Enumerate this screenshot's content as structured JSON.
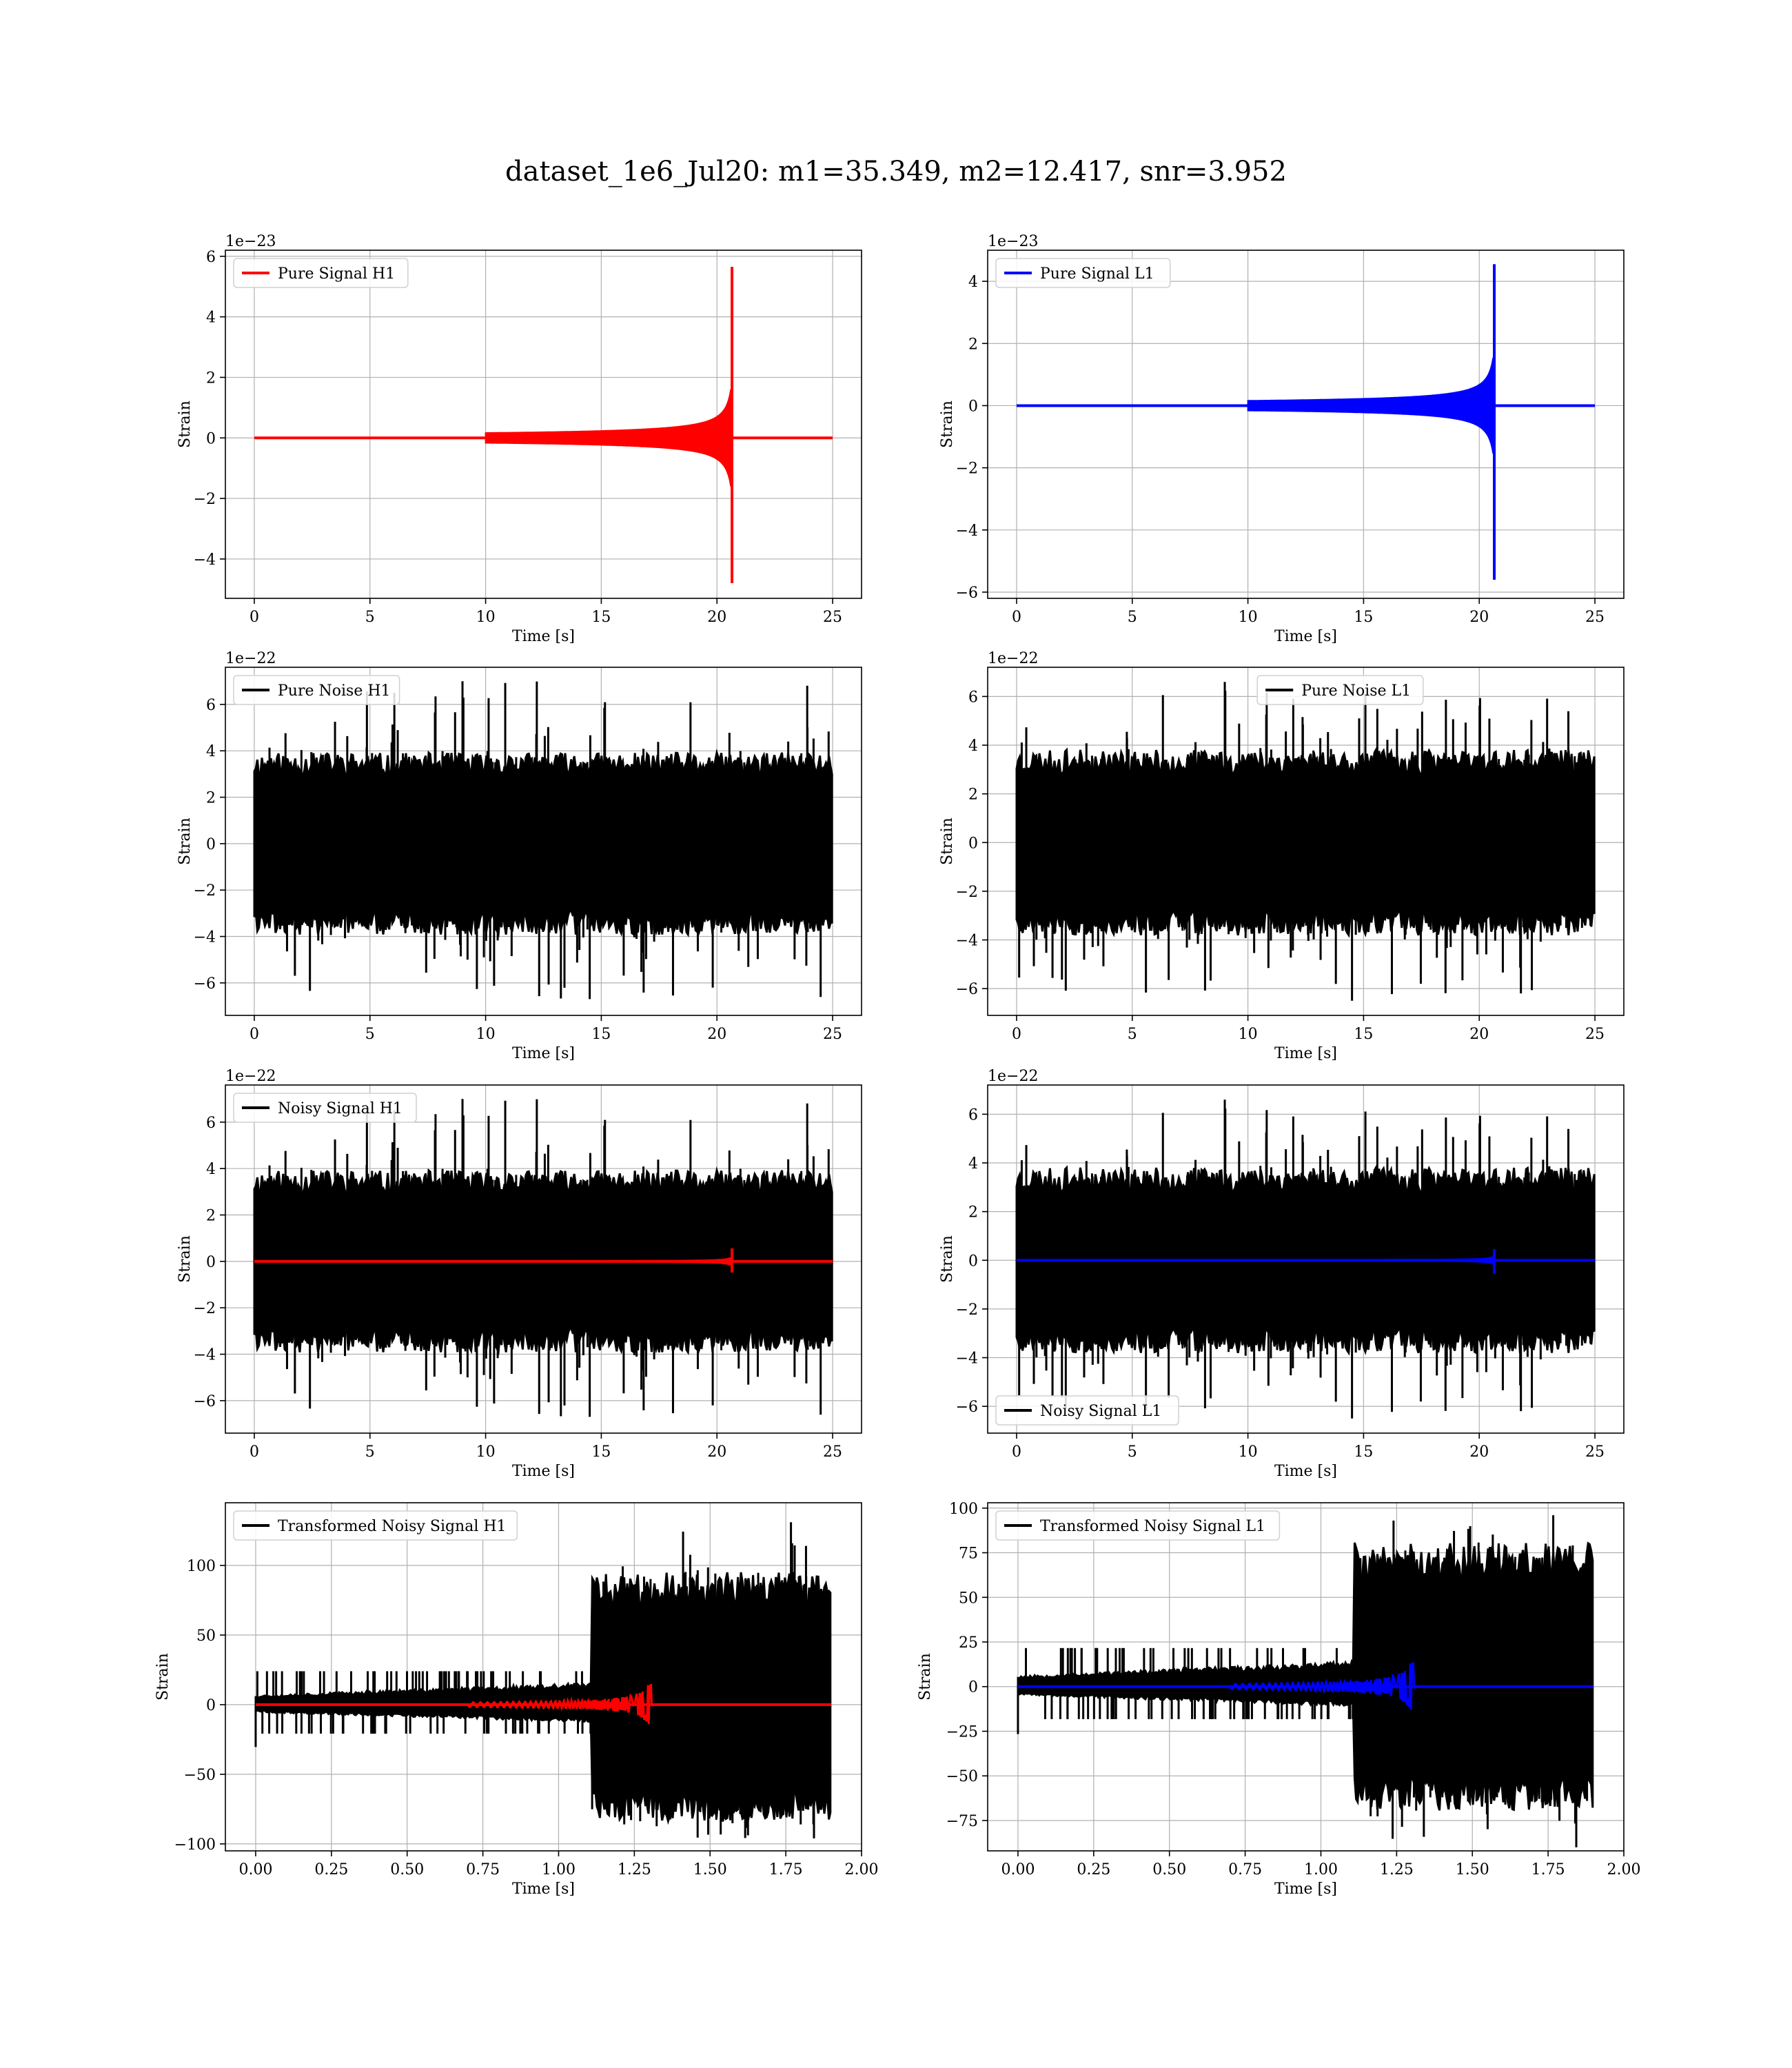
{
  "figure": {
    "title": "dataset_1e6_Jul20: m1=35.349, m2=12.417, snr=3.952"
  },
  "colors": {
    "h1_signal": "#ff0000",
    "l1_signal": "#0000ff",
    "noise": "#000000",
    "grid": "#b0b0b0"
  },
  "chart_data": [
    {
      "id": "pure-signal-h1",
      "type": "line",
      "xlabel": "Time [s]",
      "ylabel": "Strain",
      "offset_label": "1e−23",
      "xlim": [
        -1.25,
        26.25
      ],
      "ylim": [
        -5.3,
        6.2
      ],
      "xticks": [
        0,
        5,
        10,
        15,
        20,
        25
      ],
      "yticks": [
        -4,
        -2,
        0,
        2,
        4,
        6
      ],
      "legend": {
        "position": "top-left"
      },
      "series": [
        {
          "name": "Pure Signal H1",
          "color": "#ff0000",
          "kind": "chirp",
          "t0": 0,
          "tmerge": 20.65,
          "tend": 25,
          "pos_peak": 5.65,
          "neg_peak": -4.8,
          "envelope_scale": 1.3
        }
      ]
    },
    {
      "id": "pure-signal-l1",
      "type": "line",
      "xlabel": "Time [s]",
      "ylabel": "Strain",
      "offset_label": "1e−23",
      "xlim": [
        -1.25,
        26.25
      ],
      "ylim": [
        -6.2,
        5.0
      ],
      "xticks": [
        0,
        5,
        10,
        15,
        20,
        25
      ],
      "yticks": [
        -6,
        -4,
        -2,
        0,
        2,
        4
      ],
      "legend": {
        "position": "top-left"
      },
      "series": [
        {
          "name": "Pure Signal L1",
          "color": "#0000ff",
          "kind": "chirp",
          "t0": 0,
          "tmerge": 20.65,
          "tend": 25,
          "pos_peak": 4.55,
          "neg_peak": -5.6,
          "envelope_scale": 1.25
        }
      ]
    },
    {
      "id": "pure-noise-h1",
      "type": "line",
      "xlabel": "Time [s]",
      "ylabel": "Strain",
      "offset_label": "1e−22",
      "xlim": [
        -1.25,
        26.25
      ],
      "ylim": [
        -7.4,
        7.6
      ],
      "xticks": [
        0,
        5,
        10,
        15,
        20,
        25
      ],
      "yticks": [
        -6,
        -4,
        -2,
        0,
        2,
        4,
        6
      ],
      "legend": {
        "position": "top-left"
      },
      "series": [
        {
          "name": "Pure Noise H1",
          "color": "#000000",
          "kind": "noise",
          "t0": 0,
          "tend": 25,
          "band_lo": -3.5,
          "band_hi": 3.5,
          "spike_max": 7.0,
          "spike_min": -6.7,
          "seed": 11
        }
      ]
    },
    {
      "id": "pure-noise-l1",
      "type": "line",
      "xlabel": "Time [s]",
      "ylabel": "Strain",
      "offset_label": "1e−22",
      "xlim": [
        -1.25,
        26.25
      ],
      "ylim": [
        -7.1,
        7.2
      ],
      "xticks": [
        0,
        5,
        10,
        15,
        20,
        25
      ],
      "yticks": [
        -6,
        -4,
        -2,
        0,
        2,
        4,
        6
      ],
      "legend": {
        "position": "top-center"
      },
      "series": [
        {
          "name": "Pure Noise L1",
          "color": "#000000",
          "kind": "noise",
          "t0": 0,
          "tend": 25,
          "band_lo": -3.4,
          "band_hi": 3.4,
          "spike_max": 6.6,
          "spike_min": -6.5,
          "seed": 23
        }
      ]
    },
    {
      "id": "noisy-signal-h1",
      "type": "line",
      "xlabel": "Time [s]",
      "ylabel": "Strain",
      "offset_label": "1e−22",
      "xlim": [
        -1.25,
        26.25
      ],
      "ylim": [
        -7.4,
        7.6
      ],
      "xticks": [
        0,
        5,
        10,
        15,
        20,
        25
      ],
      "yticks": [
        -6,
        -4,
        -2,
        0,
        2,
        4,
        6
      ],
      "legend": {
        "position": "top-left"
      },
      "series": [
        {
          "name": "Noisy Signal H1",
          "color": "#000000",
          "kind": "noise",
          "t0": 0,
          "tend": 25,
          "band_lo": -3.5,
          "band_hi": 3.5,
          "spike_max": 7.0,
          "spike_min": -6.7,
          "seed": 11
        },
        {
          "name": "",
          "color": "#ff0000",
          "kind": "chirp",
          "t0": 0,
          "tmerge": 20.65,
          "tend": 25,
          "pos_peak": 0.56,
          "neg_peak": -0.48,
          "envelope_scale": 0.13
        }
      ]
    },
    {
      "id": "noisy-signal-l1",
      "type": "line",
      "xlabel": "Time [s]",
      "ylabel": "Strain",
      "offset_label": "1e−22",
      "xlim": [
        -1.25,
        26.25
      ],
      "ylim": [
        -7.1,
        7.2
      ],
      "xticks": [
        0,
        5,
        10,
        15,
        20,
        25
      ],
      "yticks": [
        -6,
        -4,
        -2,
        0,
        2,
        4,
        6
      ],
      "legend": {
        "position": "bottom-left"
      },
      "series": [
        {
          "name": "Noisy Signal L1",
          "color": "#000000",
          "kind": "noise",
          "t0": 0,
          "tend": 25,
          "band_lo": -3.4,
          "band_hi": 3.4,
          "spike_max": 6.6,
          "spike_min": -6.5,
          "seed": 23
        },
        {
          "name": "",
          "color": "#0000ff",
          "kind": "chirp",
          "t0": 0,
          "tmerge": 20.65,
          "tend": 25,
          "pos_peak": 0.46,
          "neg_peak": -0.56,
          "envelope_scale": 0.12
        }
      ]
    },
    {
      "id": "transformed-noisy-signal-h1",
      "type": "line",
      "xlabel": "Time [s]",
      "ylabel": "Strain",
      "offset_label": "",
      "xlim": [
        -0.1,
        2.0
      ],
      "ylim": [
        -105,
        145
      ],
      "xticks": [
        0.0,
        0.25,
        0.5,
        0.75,
        1.0,
        1.25,
        1.5,
        1.75,
        2.0
      ],
      "xtick_labels": [
        "0.00",
        "0.25",
        "0.50",
        "0.75",
        "1.00",
        "1.25",
        "1.50",
        "1.75",
        "2.00"
      ],
      "yticks": [
        -100,
        -50,
        0,
        50,
        100
      ],
      "legend": {
        "position": "top-left"
      },
      "series": [
        {
          "name": "Transformed Noisy Signal H1",
          "color": "#000000",
          "kind": "transformed",
          "t0": 0,
          "tstep": 1.11,
          "tend": 1.9,
          "early_lo": -8,
          "early_hi": 10,
          "late_lo": -75,
          "late_hi": 85,
          "spike_max": 131,
          "spike_min": -96,
          "seed": 37
        },
        {
          "name": "",
          "color": "#ff0000",
          "kind": "burst",
          "t0": 0,
          "tpeak": 1.31,
          "tend": 1.9,
          "amp": 14
        }
      ]
    },
    {
      "id": "transformed-noisy-signal-l1",
      "type": "line",
      "xlabel": "Time [s]",
      "ylabel": "Strain",
      "offset_label": "",
      "xlim": [
        -0.1,
        2.0
      ],
      "ylim": [
        -92,
        103
      ],
      "xticks": [
        0.0,
        0.25,
        0.5,
        0.75,
        1.0,
        1.25,
        1.5,
        1.75,
        2.0
      ],
      "xtick_labels": [
        "0.00",
        "0.25",
        "0.50",
        "0.75",
        "1.00",
        "1.25",
        "1.50",
        "1.75",
        "2.00"
      ],
      "yticks": [
        -75,
        -50,
        -25,
        0,
        25,
        50,
        75,
        100
      ],
      "legend": {
        "position": "top-left"
      },
      "series": [
        {
          "name": "Transformed Noisy Signal L1",
          "color": "#000000",
          "kind": "transformed",
          "t0": 0,
          "tstep": 1.11,
          "tend": 1.9,
          "early_lo": -7,
          "early_hi": 9,
          "late_lo": -62,
          "late_hi": 72,
          "spike_max": 96,
          "spike_min": -90,
          "seed": 53
        },
        {
          "name": "",
          "color": "#0000ff",
          "kind": "burst",
          "t0": 0,
          "tpeak": 1.31,
          "tend": 1.9,
          "amp": 13
        }
      ]
    }
  ]
}
